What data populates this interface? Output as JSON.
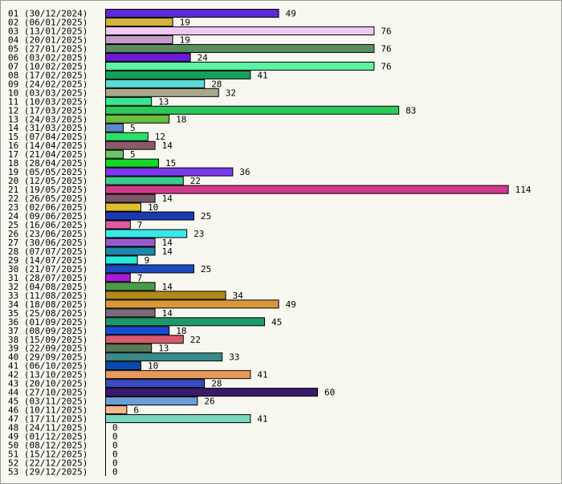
{
  "chart_data": {
    "type": "bar",
    "orientation": "horizontal",
    "title": "",
    "xlabel": "",
    "ylabel": "",
    "grid": false,
    "legend": "none",
    "xlim": [
      0,
      114
    ],
    "categories": [
      "01 (30/12/2024)",
      "02 (06/01/2025)",
      "03 (13/01/2025)",
      "04 (20/01/2025)",
      "05 (27/01/2025)",
      "06 (03/02/2025)",
      "07 (10/02/2025)",
      "08 (17/02/2025)",
      "09 (24/02/2025)",
      "10 (03/03/2025)",
      "11 (10/03/2025)",
      "12 (17/03/2025)",
      "13 (24/03/2025)",
      "14 (31/03/2025)",
      "15 (07/04/2025)",
      "16 (14/04/2025)",
      "17 (21/04/2025)",
      "18 (28/04/2025)",
      "19 (05/05/2025)",
      "20 (12/05/2025)",
      "21 (19/05/2025)",
      "22 (26/05/2025)",
      "23 (02/06/2025)",
      "24 (09/06/2025)",
      "25 (16/06/2025)",
      "26 (23/06/2025)",
      "27 (30/06/2025)",
      "28 (07/07/2025)",
      "29 (14/07/2025)",
      "30 (21/07/2025)",
      "31 (28/07/2025)",
      "32 (04/08/2025)",
      "33 (11/08/2025)",
      "34 (18/08/2025)",
      "35 (25/08/2025)",
      "36 (01/09/2025)",
      "37 (08/09/2025)",
      "38 (15/09/2025)",
      "39 (22/09/2025)",
      "40 (29/09/2025)",
      "41 (06/10/2025)",
      "42 (13/10/2025)",
      "43 (20/10/2025)",
      "44 (27/10/2025)",
      "45 (03/11/2025)",
      "46 (10/11/2025)",
      "47 (17/11/2025)",
      "48 (24/11/2025)",
      "49 (01/12/2025)",
      "50 (08/12/2025)",
      "51 (15/12/2025)",
      "52 (22/12/2025)",
      "53 (29/12/2025)"
    ],
    "values": [
      49,
      19,
      76,
      19,
      76,
      24,
      76,
      41,
      28,
      32,
      13,
      83,
      18,
      5,
      12,
      14,
      5,
      15,
      36,
      22,
      114,
      14,
      10,
      25,
      7,
      23,
      14,
      14,
      9,
      25,
      7,
      14,
      34,
      49,
      14,
      45,
      18,
      22,
      13,
      33,
      10,
      41,
      28,
      60,
      26,
      6,
      41,
      0,
      0,
      0,
      0,
      0,
      0
    ],
    "colors": [
      "#5b2bd8",
      "#d4b43c",
      "#f0c8f4",
      "#c89acc",
      "#5a8c5e",
      "#6a1ad4",
      "#5cf3a2",
      "#17a05a",
      "#5cdcd8",
      "#a8a88a",
      "#3ae68e",
      "#2ac95a",
      "#6ac03a",
      "#5a8ac8",
      "#2ae06a",
      "#8a5a6a",
      "#6ac86a",
      "#12d82a",
      "#7a3af0",
      "#3acc8a",
      "#d03a8a",
      "#7a5a6a",
      "#e0c02a",
      "#1a3ab0",
      "#e05aa0",
      "#3ae8e8",
      "#9a5acc",
      "#1a8aa8",
      "#2ae8d8",
      "#1a4ac0",
      "#aa1ad8",
      "#4a9a4a",
      "#b08a1a",
      "#d8983a",
      "#7a6a7a",
      "#1a9a6a",
      "#1a4ad8",
      "#d85a6a",
      "#5a7a5a",
      "#3a8a8a",
      "#0a4ab0",
      "#e89a5a",
      "#3a4ac0",
      "#3a1a6a",
      "#6aa0d8",
      "#f8b888",
      "#7ad8c0",
      "#888888",
      "#888888",
      "#888888",
      "#888888",
      "#888888",
      "#888888"
    ]
  }
}
